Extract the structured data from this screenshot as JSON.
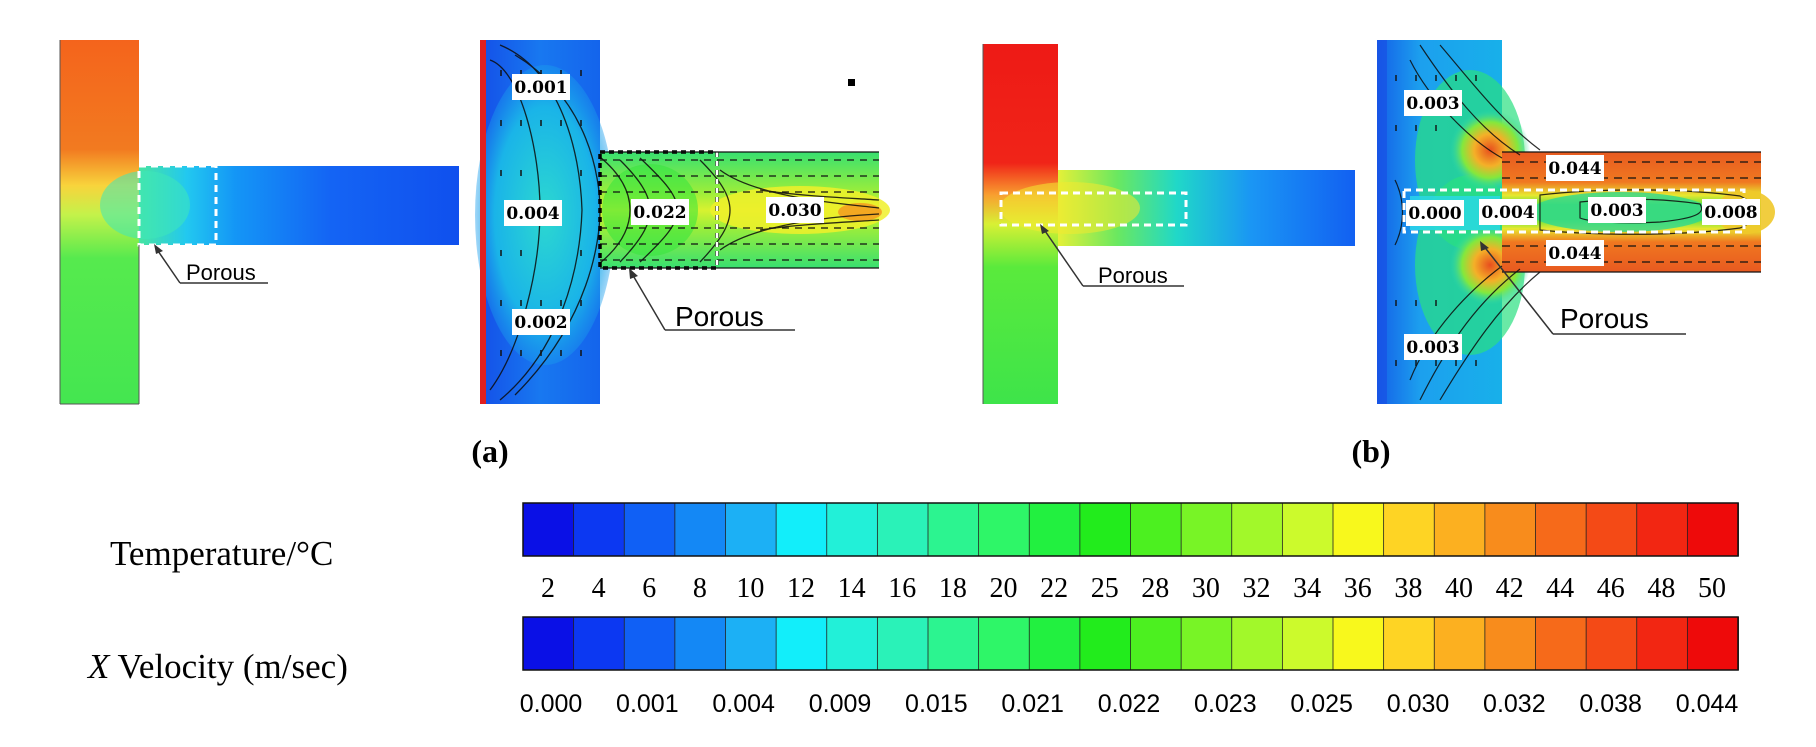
{
  "panels": [
    {
      "id": "a",
      "label": "(a)",
      "temperature_callout": "Porous",
      "velocity_callout": "Porous",
      "contour_labels": [
        "0.001",
        "0.004",
        "0.002",
        "0.022",
        "0.030"
      ]
    },
    {
      "id": "b",
      "label": "(b)",
      "temperature_callout": "Porous",
      "velocity_callout": "Porous",
      "contour_labels": [
        "0.003",
        "0.044",
        "0.000",
        "0.004",
        "0.003",
        "0.008",
        "0.044",
        "0.003"
      ]
    }
  ],
  "legends": {
    "temperature": {
      "title": "Temperature/°C",
      "ticks": [
        "2",
        "4",
        "6",
        "8",
        "10",
        "12",
        "14",
        "16",
        "18",
        "20",
        "22",
        "25",
        "28",
        "30",
        "32",
        "34",
        "36",
        "38",
        "40",
        "42",
        "44",
        "46",
        "48",
        "50"
      ]
    },
    "velocity": {
      "title_var": "X",
      "title_rest": " Velocity (m/sec)",
      "ticks": [
        "0.000",
        "0.001",
        "0.004",
        "0.009",
        "0.015",
        "0.021",
        "0.022",
        "0.023",
        "0.025",
        "0.030",
        "0.032",
        "0.038",
        "0.044"
      ]
    }
  },
  "colors": {
    "scale": [
      "#0a10e6",
      "#0c38f2",
      "#1060f5",
      "#1488f5",
      "#1cb0f5",
      "#12eefa",
      "#22f0d8",
      "#2af2b8",
      "#2cf490",
      "#2ef668",
      "#22f040",
      "#22ec1c",
      "#4cf020",
      "#78f426",
      "#a2f82a",
      "#ccfa2c",
      "#f8f81c",
      "#fed424",
      "#fcb020",
      "#f88c1c",
      "#f66a1a",
      "#f44a16",
      "#f22612",
      "#ee0a0a"
    ]
  }
}
